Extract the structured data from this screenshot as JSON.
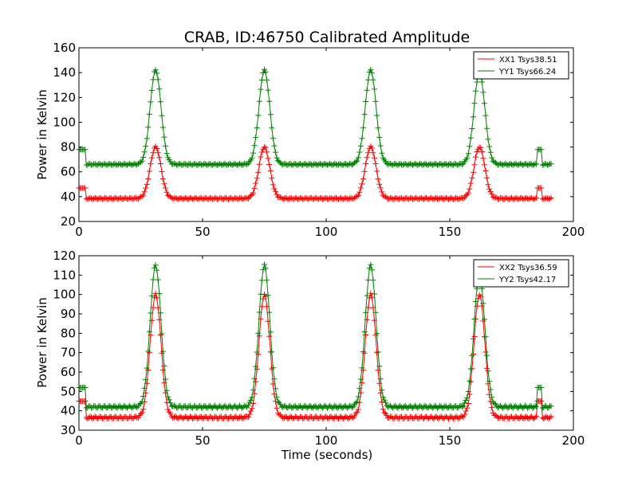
{
  "chart_data": [
    {
      "type": "line",
      "title": "CRAB, ID:46750 Calibrated Amplitude",
      "xlabel": "",
      "ylabel": "Power in Kelvin",
      "xlim": [
        0,
        200
      ],
      "ylim": [
        20,
        160
      ],
      "xticks": [
        0,
        50,
        100,
        150,
        200
      ],
      "yticks": [
        20,
        40,
        60,
        80,
        100,
        120,
        140,
        160
      ],
      "grid": false,
      "legend": "top-right",
      "marker": "+",
      "series": [
        {
          "name": "XX1 Tsys38.51",
          "color": "#ff0000",
          "baseline": 38.5,
          "start_level": 47,
          "end_bump_level": 47,
          "peaks": [
            {
              "x": 31,
              "y": 80
            },
            {
              "x": 75,
              "y": 80
            },
            {
              "x": 118,
              "y": 80
            },
            {
              "x": 162,
              "y": 80
            }
          ]
        },
        {
          "name": "YY1 Tsys66.24",
          "color": "#008000",
          "baseline": 66,
          "start_level": 78,
          "end_bump_level": 78,
          "peaks": [
            {
              "x": 31,
              "y": 142
            },
            {
              "x": 75,
              "y": 142
            },
            {
              "x": 118,
              "y": 142
            },
            {
              "x": 162,
              "y": 140
            }
          ]
        }
      ]
    },
    {
      "type": "line",
      "title": "",
      "xlabel": "Time (seconds)",
      "ylabel": "Power in Kelvin",
      "xlim": [
        0,
        200
      ],
      "ylim": [
        30,
        120
      ],
      "xticks": [
        0,
        50,
        100,
        150,
        200
      ],
      "yticks": [
        30,
        40,
        50,
        60,
        70,
        80,
        90,
        100,
        110,
        120
      ],
      "grid": false,
      "legend": "top-right",
      "marker": "+",
      "series": [
        {
          "name": "XX2 Tsys36.59",
          "color": "#ff0000",
          "baseline": 36.5,
          "start_level": 45,
          "end_bump_level": 45,
          "peaks": [
            {
              "x": 31,
              "y": 100
            },
            {
              "x": 75,
              "y": 100
            },
            {
              "x": 118,
              "y": 100
            },
            {
              "x": 162,
              "y": 100
            }
          ]
        },
        {
          "name": "YY2 Tsys42.17",
          "color": "#008000",
          "baseline": 42,
          "start_level": 52,
          "end_bump_level": 52,
          "peaks": [
            {
              "x": 31,
              "y": 115
            },
            {
              "x": 75,
              "y": 115
            },
            {
              "x": 118,
              "y": 115
            },
            {
              "x": 162,
              "y": 110
            }
          ]
        }
      ]
    }
  ]
}
